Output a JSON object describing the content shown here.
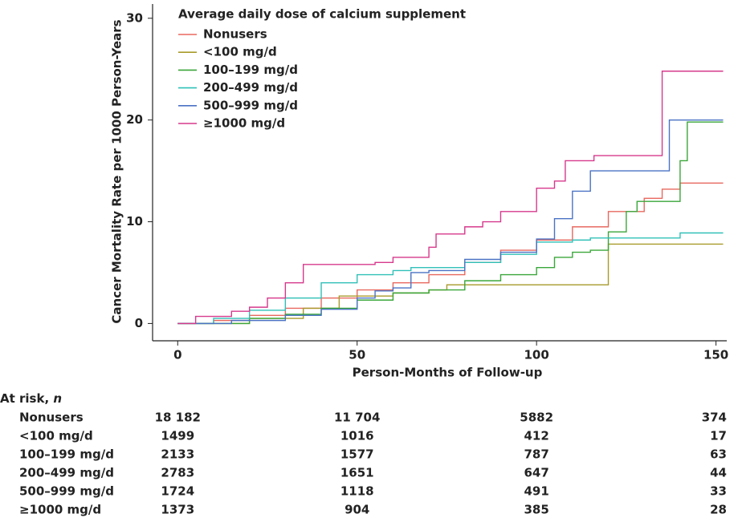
{
  "chart_data": {
    "type": "step",
    "legend_title": "Average daily dose of calcium supplement",
    "legend_position": "upper left",
    "xlabel": "Person-Months of Follow-up",
    "ylabel": "Cancer Mortality Rate per 1000 Person-Years",
    "xlim": [
      -7,
      153
    ],
    "ylim": [
      -1.7,
      31.4
    ],
    "xticks": [
      0,
      50,
      100,
      150
    ],
    "yticks": [
      0,
      10,
      20,
      30
    ],
    "grid": false,
    "series": [
      {
        "name": "Nonusers",
        "color": "#e8685f",
        "x": [
          0,
          10,
          20,
          30,
          40,
          50,
          60,
          70,
          80,
          90,
          100,
          110,
          120,
          130,
          135,
          140,
          152
        ],
        "values": [
          0,
          0.3,
          0.8,
          1.5,
          2.5,
          3.3,
          4,
          4.8,
          6,
          7.2,
          8.2,
          9.5,
          11,
          12.3,
          13.2,
          13.8,
          13.8
        ]
      },
      {
        "name": "<100 mg/d",
        "color": "#a89a2a",
        "x": [
          0,
          20,
          35,
          45,
          60,
          70,
          75,
          120,
          152
        ],
        "values": [
          0,
          0.5,
          1.5,
          2.7,
          3,
          3.3,
          3.8,
          7.8,
          7.8
        ]
      },
      {
        "name": "100–199 mg/d",
        "color": "#3aa63a",
        "x": [
          0,
          20,
          30,
          40,
          50,
          60,
          70,
          80,
          90,
          100,
          105,
          110,
          115,
          120,
          125,
          128,
          140,
          142,
          152
        ],
        "values": [
          0,
          0.5,
          0.9,
          1.5,
          2.3,
          3,
          3.3,
          4.2,
          4.8,
          5.5,
          6.5,
          7,
          7.2,
          9,
          11,
          12,
          16,
          19.8,
          19.8
        ]
      },
      {
        "name": "200–499 mg/d",
        "color": "#30c0b8",
        "x": [
          0,
          10,
          20,
          30,
          40,
          50,
          60,
          65,
          80,
          90,
          100,
          110,
          115,
          140,
          152
        ],
        "values": [
          0,
          0.5,
          1.3,
          2.5,
          4,
          4.8,
          5.2,
          5.5,
          6,
          6.8,
          8,
          8.2,
          8.4,
          8.9,
          8.9
        ]
      },
      {
        "name": "500–999 mg/d",
        "color": "#4a72c4",
        "x": [
          0,
          15,
          30,
          40,
          50,
          55,
          60,
          65,
          70,
          80,
          90,
          100,
          105,
          110,
          115,
          137,
          152
        ],
        "values": [
          0,
          0.3,
          0.8,
          1.4,
          2.5,
          3.2,
          3.5,
          5,
          5.2,
          6.3,
          7,
          8.3,
          10.3,
          13,
          15,
          20,
          20
        ]
      },
      {
        "name": "≥1000 mg/d",
        "color": "#d6398c",
        "x": [
          0,
          5,
          15,
          20,
          25,
          30,
          35,
          55,
          60,
          70,
          72,
          80,
          85,
          90,
          100,
          105,
          108,
          116,
          135,
          152
        ],
        "values": [
          0,
          0.7,
          1.2,
          1.6,
          2.5,
          4,
          5.8,
          6,
          6.5,
          7.5,
          8.8,
          9.5,
          10,
          11,
          13.3,
          14,
          16,
          16.5,
          24.8,
          24.8
        ]
      }
    ]
  },
  "risk_table": {
    "title": "At risk,",
    "title_italic": "n",
    "rows": [
      {
        "label": "Nonusers",
        "cells": [
          "18 182",
          "11 704",
          "5882",
          "374"
        ]
      },
      {
        "label": "<100 mg/d",
        "cells": [
          "1499",
          "1016",
          "412",
          "17"
        ]
      },
      {
        "label": "100–199 mg/d",
        "cells": [
          "2133",
          "1577",
          "787",
          "63"
        ]
      },
      {
        "label": "200–499 mg/d",
        "cells": [
          "2783",
          "1651",
          "647",
          "44"
        ]
      },
      {
        "label": "500–999 mg/d",
        "cells": [
          "1724",
          "1118",
          "491",
          "33"
        ]
      },
      {
        "label": "≥1000 mg/d",
        "cells": [
          "1373",
          "904",
          "385",
          "28"
        ]
      }
    ]
  }
}
